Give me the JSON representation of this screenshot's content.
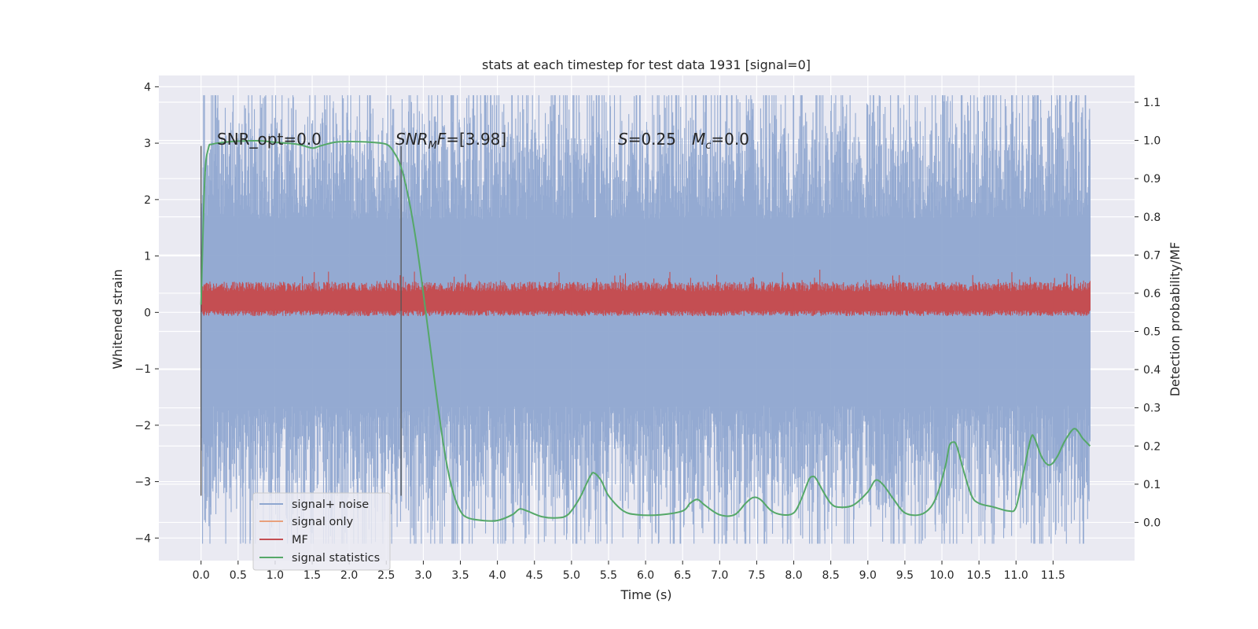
{
  "chart_data": {
    "type": "line",
    "title": "stats at each timestep for test data 1931 [signal=0]",
    "xlabel": "Time (s)",
    "ylabel": "Whitened strain",
    "y2label": "Detection probability/MF",
    "xlim": [
      -0.57,
      12.6
    ],
    "ylim": [
      -4.4,
      4.2
    ],
    "y2lim": [
      -0.1,
      1.17
    ],
    "grid": true,
    "legend_position": "lower-left",
    "x_ticks": [
      0.0,
      0.5,
      1.0,
      1.5,
      2.0,
      2.5,
      3.0,
      3.5,
      4.0,
      4.5,
      5.0,
      5.5,
      6.0,
      6.5,
      7.0,
      7.5,
      8.0,
      8.5,
      9.0,
      9.5,
      10.0,
      10.5,
      11.0,
      11.5
    ],
    "x_tick_labels": [
      "0.0",
      "0.5",
      "1.0",
      "1.5",
      "2.0",
      "2.5",
      "3.0",
      "3.5",
      "4.0",
      "4.5",
      "5.0",
      "5.5",
      "6.0",
      "6.5",
      "7.0",
      "7.5",
      "8.0",
      "8.5",
      "9.0",
      "9.5",
      "10.0",
      "10.5",
      "11.0",
      "11.5"
    ],
    "y_ticks": [
      -4,
      -3,
      -2,
      -1,
      0,
      1,
      2,
      3,
      4
    ],
    "y_tick_labels": [
      "−4",
      "−3",
      "−2",
      "−1",
      "0",
      "1",
      "2",
      "3",
      "4"
    ],
    "y2_ticks": [
      0.0,
      0.1,
      0.2,
      0.3,
      0.4,
      0.5,
      0.6,
      0.7,
      0.8,
      0.9,
      1.0,
      1.1
    ],
    "y2_tick_labels": [
      "0.0",
      "0.1",
      "0.2",
      "0.3",
      "0.4",
      "0.5",
      "0.6",
      "0.7",
      "0.8",
      "0.9",
      "1.0",
      "1.1"
    ],
    "vlines": [
      0.0,
      2.7
    ],
    "annotations": {
      "snr_opt": "SNR_opt=0.0",
      "snr_mf_label": "SNR",
      "snr_mf_sub": "M",
      "snr_mf_label2": "F",
      "snr_mf_value": "=[3.98]",
      "s_label": "S",
      "s_value": "=0.25",
      "mc_label": "M",
      "mc_sub": "c",
      "mc_value": "=0.0"
    },
    "series": [
      {
        "name": "signal+ noise",
        "color": "#8fa7d0",
        "style": "dense noise, approx band -3.0 to 3.0 (peaks up to about 3.8, down to about -4.1)",
        "x": [
          0.0,
          12.0
        ],
        "y_envelope_low": -3.0,
        "y_envelope_high": 3.0
      },
      {
        "name": "signal only",
        "color": "#e8a07c",
        "x": [],
        "y": []
      },
      {
        "name": "MF",
        "color": "#c44e52",
        "style": "dense noise on right axis, approx band 0.56 to 0.62 (peaks up to about 0.67)",
        "x": [
          0.0,
          12.0
        ],
        "y2_envelope_low": 0.54,
        "y2_envelope_high": 0.63
      },
      {
        "name": "signal statistics",
        "color": "#55a868",
        "axis": "right",
        "x": [
          0.0,
          0.05,
          0.1,
          0.15,
          0.3,
          0.5,
          0.8,
          1.0,
          1.3,
          1.5,
          1.6,
          1.8,
          2.0,
          2.3,
          2.5,
          2.6,
          2.7,
          2.8,
          2.9,
          3.0,
          3.1,
          3.2,
          3.3,
          3.4,
          3.5,
          3.6,
          3.8,
          4.0,
          4.2,
          4.3,
          4.4,
          4.6,
          4.8,
          4.95,
          5.1,
          5.2,
          5.25,
          5.3,
          5.4,
          5.5,
          5.7,
          5.9,
          6.2,
          6.5,
          6.6,
          6.7,
          6.8,
          7.0,
          7.2,
          7.35,
          7.45,
          7.55,
          7.7,
          7.85,
          8.0,
          8.1,
          8.2,
          8.25,
          8.3,
          8.4,
          8.5,
          8.6,
          8.8,
          9.0,
          9.1,
          9.2,
          9.35,
          9.5,
          9.7,
          9.85,
          9.95,
          10.05,
          10.1,
          10.15,
          10.2,
          10.3,
          10.4,
          10.5,
          10.7,
          10.9,
          11.0,
          11.1,
          11.2,
          11.25,
          11.35,
          11.45,
          11.55,
          11.65,
          11.75,
          11.8,
          11.85,
          11.9,
          12.0
        ],
        "y": [
          0.57,
          0.9,
          0.98,
          0.99,
          0.995,
          0.998,
          0.999,
          0.995,
          0.99,
          0.98,
          0.985,
          0.995,
          0.997,
          0.995,
          0.99,
          0.97,
          0.93,
          0.85,
          0.74,
          0.6,
          0.45,
          0.3,
          0.17,
          0.08,
          0.03,
          0.012,
          0.005,
          0.005,
          0.02,
          0.035,
          0.03,
          0.015,
          0.012,
          0.02,
          0.06,
          0.1,
          0.12,
          0.13,
          0.11,
          0.07,
          0.03,
          0.02,
          0.02,
          0.03,
          0.05,
          0.06,
          0.045,
          0.02,
          0.02,
          0.05,
          0.065,
          0.06,
          0.03,
          0.02,
          0.025,
          0.06,
          0.11,
          0.12,
          0.115,
          0.08,
          0.05,
          0.04,
          0.045,
          0.08,
          0.11,
          0.1,
          0.06,
          0.025,
          0.02,
          0.04,
          0.08,
          0.15,
          0.2,
          0.21,
          0.2,
          0.13,
          0.07,
          0.05,
          0.04,
          0.03,
          0.04,
          0.13,
          0.22,
          0.22,
          0.17,
          0.15,
          0.17,
          0.21,
          0.24,
          0.245,
          0.235,
          0.22,
          0.2
        ]
      }
    ]
  }
}
